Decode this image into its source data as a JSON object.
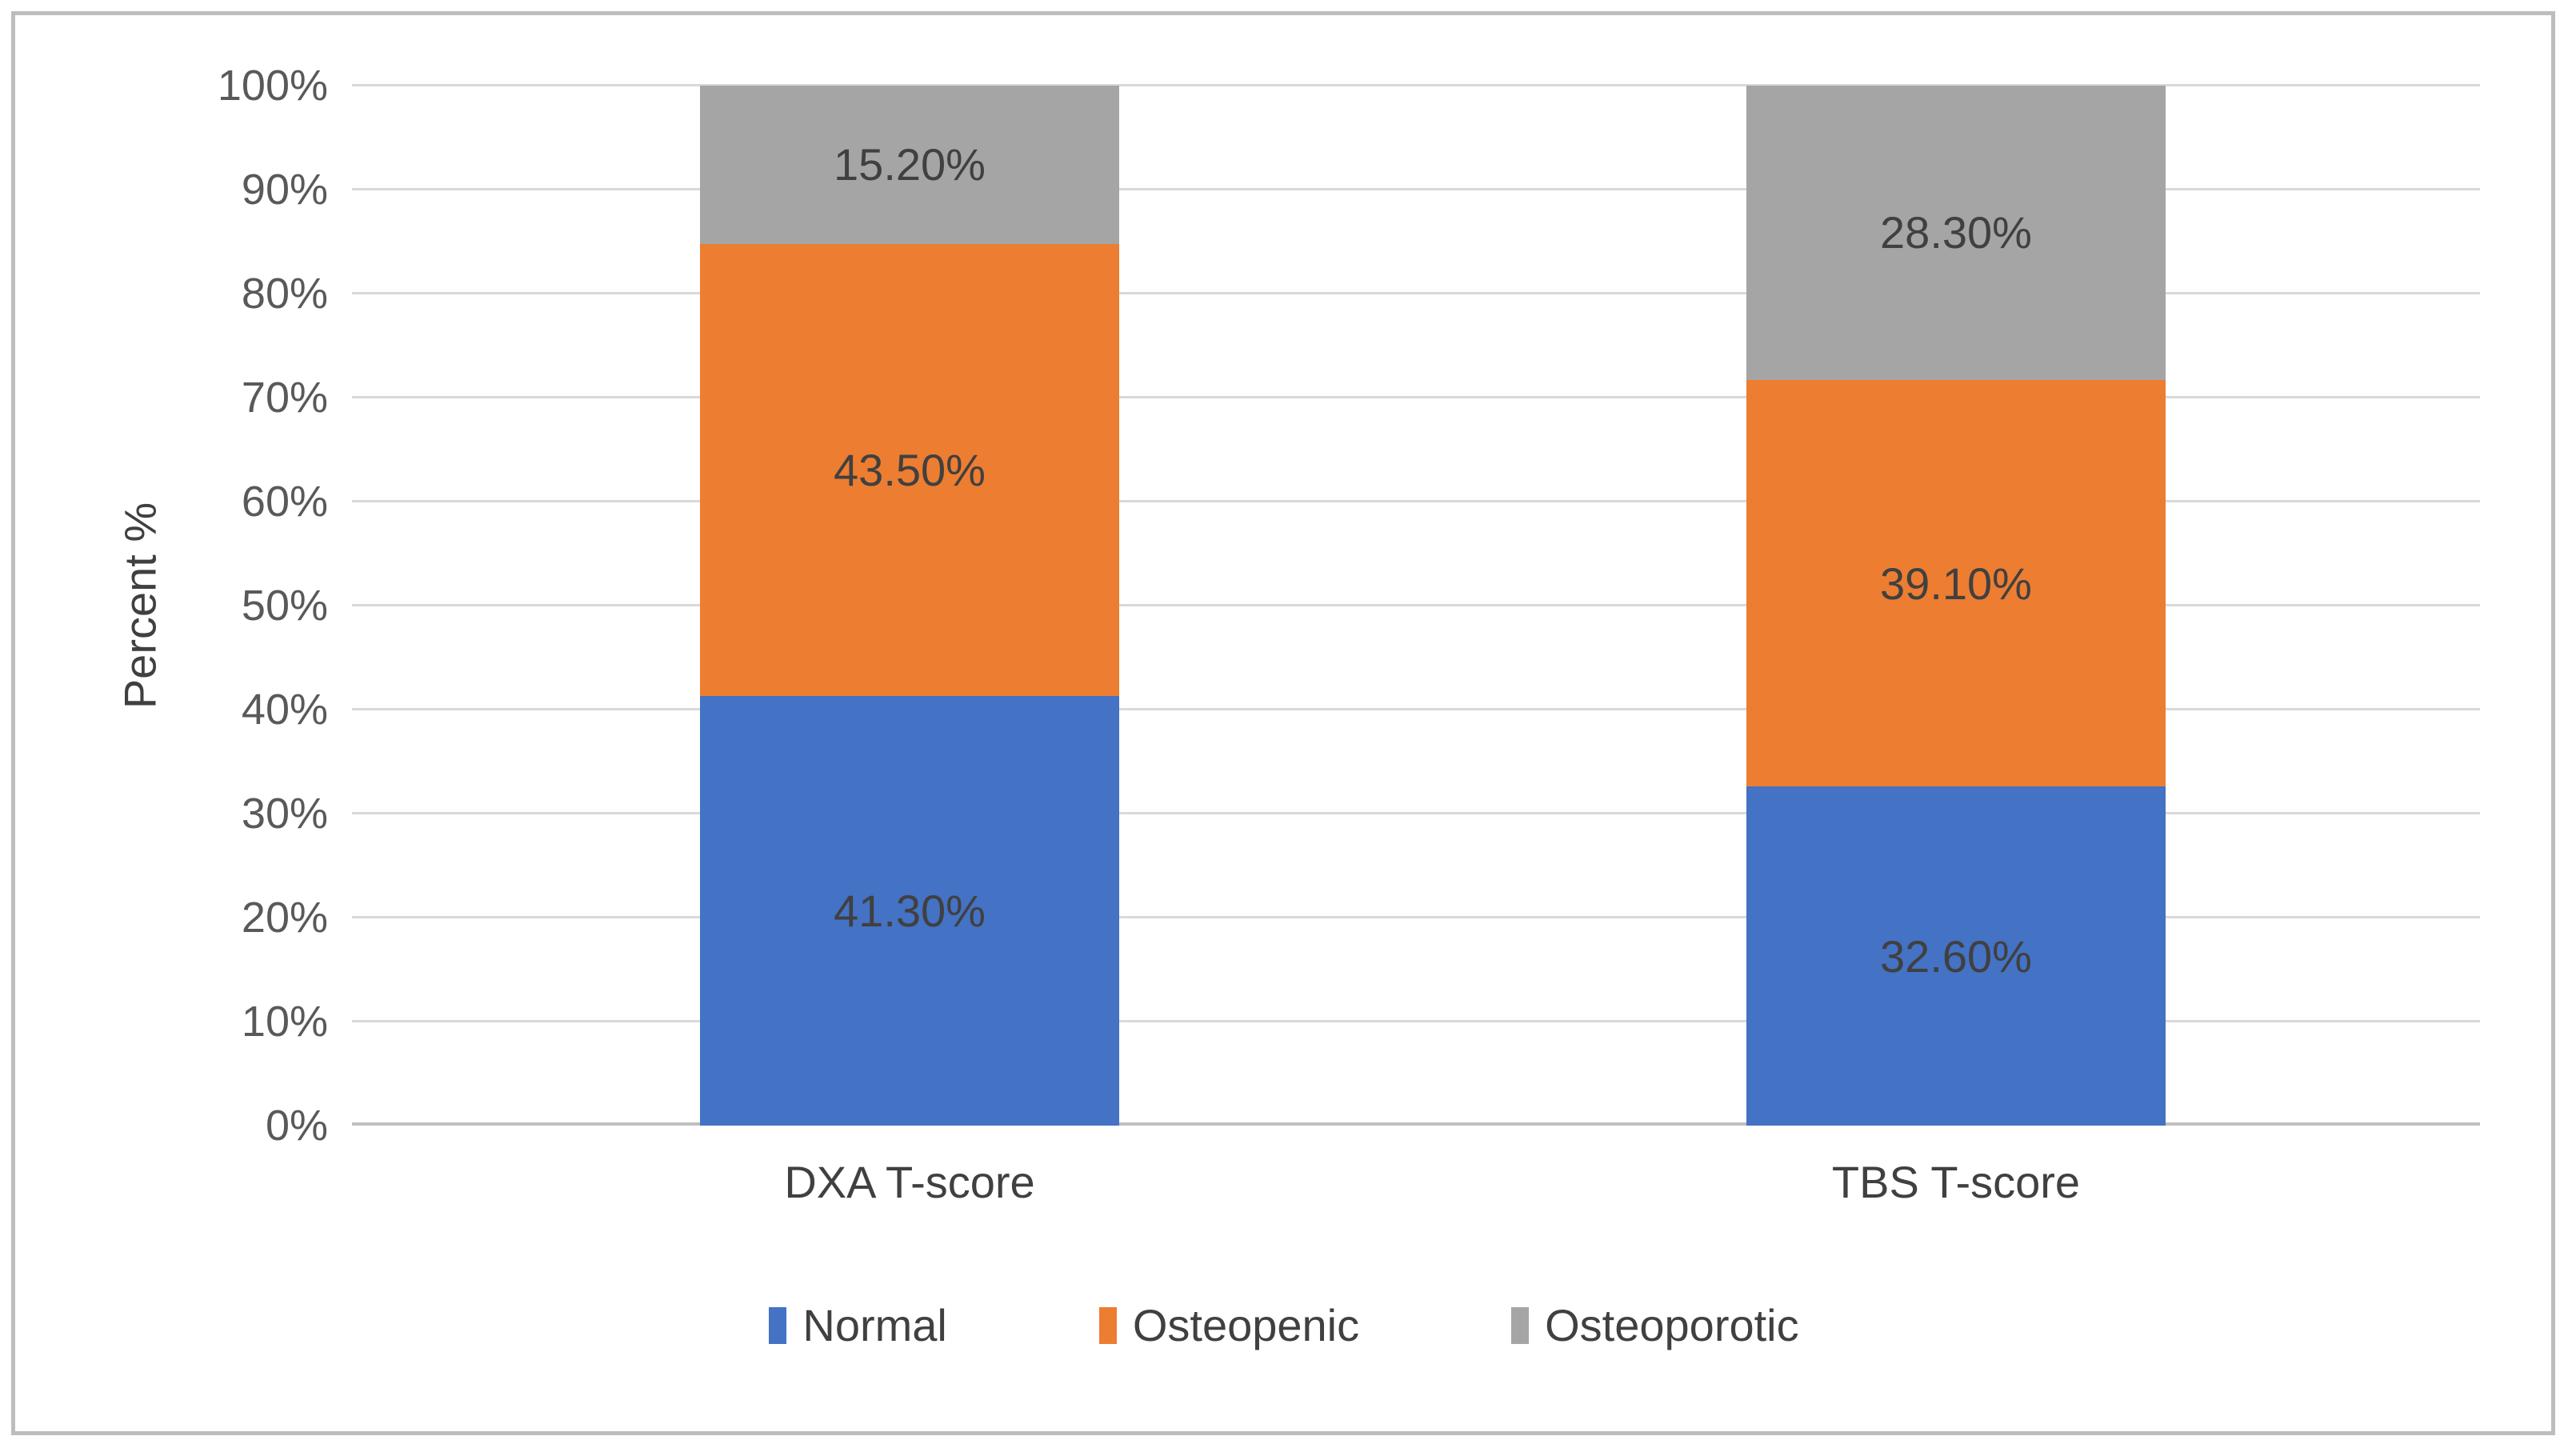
{
  "figure": {
    "kind": "excel-style stacked column chart"
  },
  "y_axis": {
    "title": "Percent %",
    "ticks": [
      "0%",
      "10%",
      "20%",
      "30%",
      "40%",
      "50%",
      "60%",
      "70%",
      "80%",
      "90%",
      "100%"
    ]
  },
  "chart_data": {
    "type": "bar",
    "stacked": true,
    "categories": [
      "DXA T-score",
      "TBS T-score"
    ],
    "series": [
      {
        "name": "Normal",
        "color": "#4472C4",
        "values": [
          41.3,
          32.6
        ],
        "labels": [
          "41.30%",
          "32.60%"
        ]
      },
      {
        "name": "Osteopenic",
        "color": "#ED7D31",
        "values": [
          43.5,
          39.1
        ],
        "labels": [
          "43.50%",
          "39.10%"
        ]
      },
      {
        "name": "Osteoporotic",
        "color": "#A5A5A5",
        "values": [
          15.2,
          28.3
        ],
        "labels": [
          "15.20%",
          "28.30%"
        ]
      }
    ],
    "title": "",
    "xlabel": "",
    "ylabel": "Percent %",
    "ylim": [
      0,
      100
    ],
    "ytick_step": 10,
    "grid": true,
    "legend_position": "bottom"
  },
  "legend": {
    "items": [
      {
        "label": "Normal",
        "color": "#4472C4"
      },
      {
        "label": "Osteopenic",
        "color": "#ED7D31"
      },
      {
        "label": "Osteoporotic",
        "color": "#A5A5A5"
      }
    ]
  },
  "colors": {
    "gridline": "#D9D9D9",
    "axis_line": "#BFBFBF",
    "label_text": "#404040",
    "tick_text": "#595959",
    "frame_border": "#BDBDBD",
    "background": "#FFFFFF"
  }
}
